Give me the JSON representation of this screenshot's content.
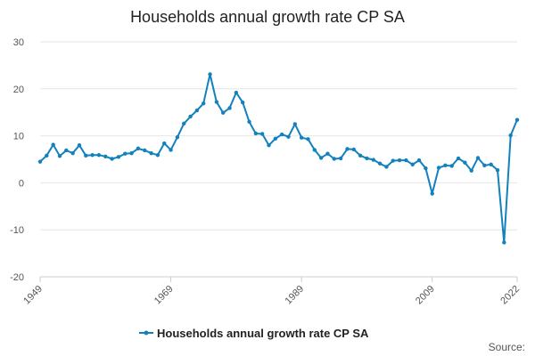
{
  "chart_data": {
    "type": "line",
    "title": "Households annual growth rate CP SA",
    "xlabel": "",
    "ylabel": "",
    "ylim": [
      -20,
      30
    ],
    "yticks": [
      30,
      20,
      10,
      0,
      -10,
      -20
    ],
    "xlim": [
      1949,
      2022
    ],
    "xticks": [
      1949,
      1969,
      1989,
      2009,
      2022
    ],
    "grid": true,
    "legend_position": "bottom",
    "source_text": "Source:",
    "series": [
      {
        "name": "Households annual growth rate CP SA",
        "color": "#1381bd",
        "x": [
          1949,
          1950,
          1951,
          1952,
          1953,
          1954,
          1955,
          1956,
          1957,
          1958,
          1959,
          1960,
          1961,
          1962,
          1963,
          1964,
          1965,
          1966,
          1967,
          1968,
          1969,
          1970,
          1971,
          1972,
          1973,
          1974,
          1975,
          1976,
          1977,
          1978,
          1979,
          1980,
          1981,
          1982,
          1983,
          1984,
          1985,
          1986,
          1987,
          1988,
          1989,
          1990,
          1991,
          1992,
          1993,
          1994,
          1995,
          1996,
          1997,
          1998,
          1999,
          2000,
          2001,
          2002,
          2003,
          2004,
          2005,
          2006,
          2007,
          2008,
          2009,
          2010,
          2011,
          2012,
          2013,
          2014,
          2015,
          2016,
          2017,
          2018,
          2019,
          2020,
          2021,
          2022
        ],
        "values": [
          4.5,
          5.8,
          8.1,
          5.7,
          6.9,
          6.3,
          8.0,
          5.8,
          5.9,
          5.9,
          5.6,
          5.1,
          5.5,
          6.2,
          6.3,
          7.3,
          6.9,
          6.3,
          5.9,
          8.4,
          7.0,
          9.7,
          12.6,
          14.1,
          15.4,
          16.9,
          23.1,
          17.2,
          14.9,
          15.9,
          19.2,
          17.1,
          13.0,
          10.5,
          10.4,
          8.0,
          9.4,
          10.3,
          9.8,
          12.5,
          9.6,
          9.3,
          7.0,
          5.3,
          6.2,
          5.1,
          5.2,
          7.2,
          7.1,
          5.8,
          5.2,
          4.9,
          4.1,
          3.4,
          4.7,
          4.8,
          4.8,
          3.9,
          4.8,
          3.1,
          -2.3,
          3.2,
          3.7,
          3.6,
          5.2,
          4.3,
          2.6,
          5.3,
          3.7,
          3.9,
          2.7,
          -12.7,
          10.1,
          13.4
        ]
      }
    ]
  }
}
